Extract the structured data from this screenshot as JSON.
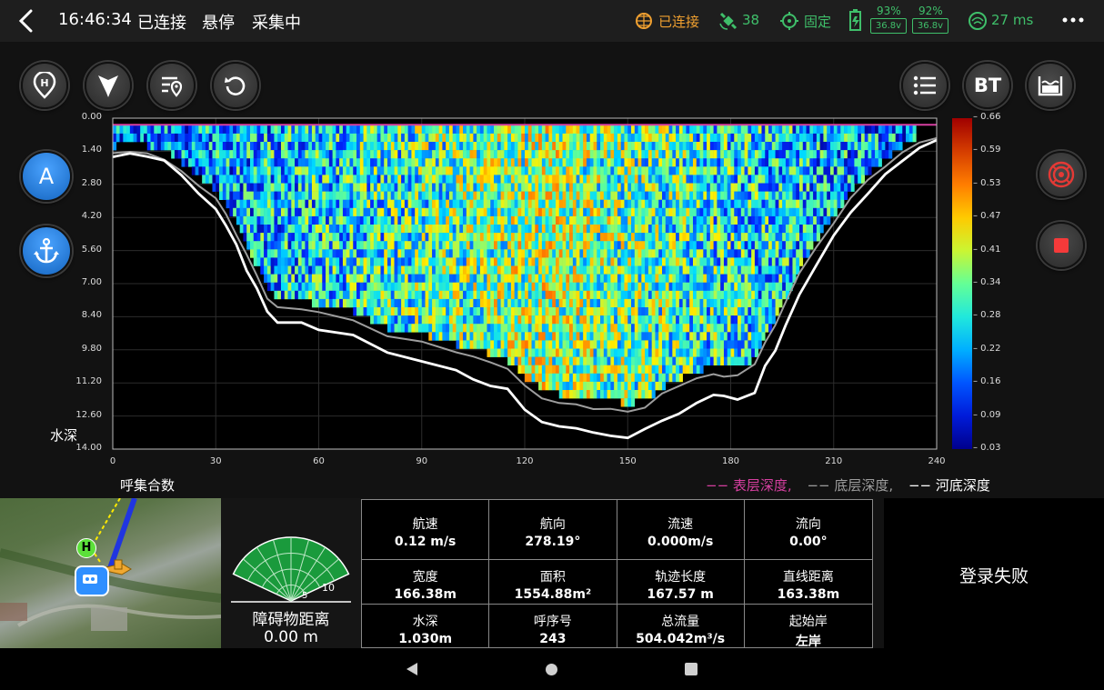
{
  "topbar": {
    "time": "16:46:34",
    "status1": "已连接",
    "status2": "悬停",
    "status3": "采集中",
    "conn_label": "已连接",
    "sat_count": "38",
    "fix_label": "固定",
    "bat1_pct": "93%",
    "bat1_volt": "36.8v",
    "bat2_pct": "92%",
    "bat2_volt": "36.8v",
    "latency": "27 ms"
  },
  "toolbar_icons": [
    "home-h-icon",
    "boat-icon",
    "route-list-icon",
    "refresh-icon",
    "list-icon",
    "bt-button",
    "water-level-icon"
  ],
  "bt_label": "BT",
  "side_left": {
    "mode_label": "A"
  },
  "chart_data": {
    "type": "heatmap",
    "xlabel": "呼集合数",
    "ylabel": "水深",
    "x_ticks": [
      "0",
      "30",
      "60",
      "90",
      "120",
      "150",
      "180",
      "210",
      "240"
    ],
    "xlim": [
      0,
      240
    ],
    "y_ticks": [
      "0.00",
      "1.40",
      "2.80",
      "4.20",
      "5.60",
      "7.00",
      "8.40",
      "9.80",
      "11.20",
      "12.60",
      "14.00"
    ],
    "ylim": [
      0,
      14
    ],
    "colorbar_ticks": [
      "0.66",
      "0.59",
      "0.53",
      "0.47",
      "0.41",
      "0.34",
      "0.28",
      "0.22",
      "0.16",
      "0.09",
      "0.03"
    ],
    "colorbar_range": [
      0.03,
      0.66
    ],
    "legend": [
      {
        "name": "表层深度,",
        "color": "#d63fa0"
      },
      {
        "name": "底层深度,",
        "color": "#9e9e9e"
      },
      {
        "name": "河底深度",
        "color": "#ffffff"
      }
    ],
    "riverbed_depth": [
      [
        0,
        1.6
      ],
      [
        5,
        1.55
      ],
      [
        10,
        1.6
      ],
      [
        15,
        1.8
      ],
      [
        20,
        2.4
      ],
      [
        25,
        3.2
      ],
      [
        30,
        3.8
      ],
      [
        33,
        4.6
      ],
      [
        36,
        5.4
      ],
      [
        39,
        6.4
      ],
      [
        42,
        7.2
      ],
      [
        45,
        8.2
      ],
      [
        48,
        8.6
      ],
      [
        55,
        8.7
      ],
      [
        60,
        8.9
      ],
      [
        70,
        9.2
      ],
      [
        80,
        9.9
      ],
      [
        90,
        10.3
      ],
      [
        100,
        10.7
      ],
      [
        105,
        11.0
      ],
      [
        110,
        11.3
      ],
      [
        115,
        11.5
      ],
      [
        120,
        12.3
      ],
      [
        125,
        12.8
      ],
      [
        130,
        13.0
      ],
      [
        135,
        13.1
      ],
      [
        140,
        13.3
      ],
      [
        145,
        13.4
      ],
      [
        150,
        13.5
      ],
      [
        155,
        13.2
      ],
      [
        160,
        12.8
      ],
      [
        165,
        12.5
      ],
      [
        170,
        12.1
      ],
      [
        175,
        11.7
      ],
      [
        178,
        11.8
      ],
      [
        182,
        11.9
      ],
      [
        187,
        11.6
      ],
      [
        190,
        10.5
      ],
      [
        193,
        9.8
      ],
      [
        196,
        8.8
      ],
      [
        200,
        7.5
      ],
      [
        205,
        6.2
      ],
      [
        210,
        5.0
      ],
      [
        215,
        4.0
      ],
      [
        220,
        3.2
      ],
      [
        225,
        2.4
      ],
      [
        230,
        1.8
      ],
      [
        235,
        1.2
      ],
      [
        240,
        0.9
      ]
    ],
    "bottom_layer_depth": [
      [
        0,
        1.5
      ],
      [
        5,
        1.45
      ],
      [
        10,
        1.5
      ],
      [
        15,
        1.7
      ],
      [
        20,
        2.2
      ],
      [
        25,
        2.9
      ],
      [
        30,
        3.4
      ],
      [
        33,
        4.1
      ],
      [
        36,
        4.9
      ],
      [
        39,
        5.8
      ],
      [
        42,
        6.7
      ],
      [
        45,
        7.6
      ],
      [
        48,
        8.0
      ],
      [
        55,
        8.1
      ],
      [
        60,
        8.2
      ],
      [
        70,
        8.5
      ],
      [
        80,
        9.2
      ],
      [
        90,
        9.5
      ],
      [
        100,
        9.9
      ],
      [
        105,
        10.1
      ],
      [
        110,
        10.3
      ],
      [
        115,
        10.6
      ],
      [
        120,
        11.3
      ],
      [
        125,
        11.8
      ],
      [
        130,
        12.0
      ],
      [
        135,
        12.1
      ],
      [
        140,
        12.3
      ],
      [
        145,
        12.3
      ],
      [
        150,
        12.4
      ],
      [
        155,
        12.2
      ],
      [
        160,
        11.7
      ],
      [
        165,
        11.3
      ],
      [
        170,
        11.0
      ],
      [
        175,
        10.8
      ],
      [
        178,
        10.9
      ],
      [
        182,
        10.9
      ],
      [
        187,
        10.4
      ],
      [
        190,
        9.5
      ],
      [
        193,
        8.7
      ],
      [
        196,
        7.8
      ],
      [
        200,
        6.6
      ],
      [
        205,
        5.4
      ],
      [
        210,
        4.4
      ],
      [
        215,
        3.4
      ],
      [
        220,
        2.6
      ],
      [
        225,
        2.0
      ],
      [
        230,
        1.4
      ],
      [
        235,
        1.0
      ],
      [
        240,
        0.8
      ]
    ],
    "surface_depth": 0.28
  },
  "radar": {
    "label": "障碍物距离",
    "value": "0.00 m",
    "ring_labels": [
      "5",
      "10"
    ]
  },
  "stats": [
    {
      "label": "航速",
      "value": "0.12 m/s"
    },
    {
      "label": "航向",
      "value": "278.19°"
    },
    {
      "label": "流速",
      "value": "0.000m/s"
    },
    {
      "label": "流向",
      "value": "0.00°"
    },
    {
      "label": "宽度",
      "value": "166.38m"
    },
    {
      "label": "面积",
      "value": "1554.88m²"
    },
    {
      "label": "轨迹长度",
      "value": "167.57 m"
    },
    {
      "label": "直线距离",
      "value": "163.38m"
    },
    {
      "label": "水深",
      "value": "1.030m"
    },
    {
      "label": "呼序号",
      "value": "243"
    },
    {
      "label": "总流量",
      "value": "504.042m³/s"
    },
    {
      "label": "起始岸",
      "value": "左岸"
    }
  ],
  "login_status": "登录失败",
  "map": {
    "home_marker": "H"
  },
  "colors": {
    "accent_green": "#3fbf6a",
    "accent_orange": "#f0a030",
    "surface": "#d63fa0",
    "bottom": "#9e9e9e",
    "riverbed": "#ffffff"
  }
}
